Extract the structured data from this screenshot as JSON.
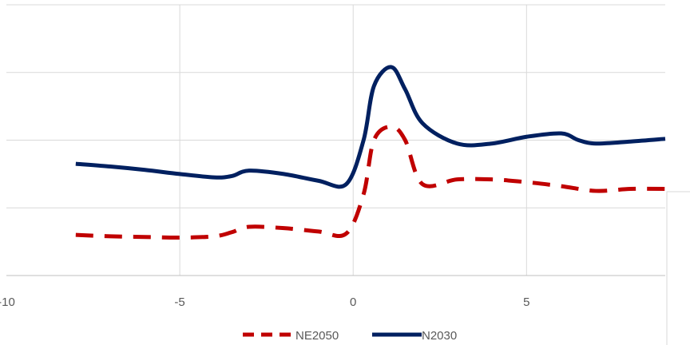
{
  "chart_data": {
    "type": "line",
    "xlim": [
      -10,
      9
    ],
    "ylim": [
      0,
      4
    ],
    "x_ticks": [
      -10,
      -5,
      0,
      5
    ],
    "x_tick_labels": [
      "-10",
      "-5",
      "0",
      "5"
    ],
    "grid": true,
    "legend_position": "bottom",
    "series": [
      {
        "name": "NE2050",
        "color": "#c00000",
        "style": "dashed",
        "x": [
          -8,
          -7,
          -6,
          -5,
          -4,
          -3.5,
          -3,
          -2,
          -1,
          -0.2,
          0.3,
          0.6,
          1.1,
          1.5,
          2,
          3,
          4,
          5,
          6,
          7,
          8,
          9
        ],
        "y": [
          0.6,
          0.58,
          0.57,
          0.56,
          0.58,
          0.64,
          0.72,
          0.7,
          0.65,
          0.62,
          1.2,
          2.0,
          2.2,
          2.0,
          1.35,
          1.42,
          1.42,
          1.38,
          1.32,
          1.25,
          1.28,
          1.28
        ]
      },
      {
        "name": "N2030",
        "color": "#002060",
        "style": "solid",
        "x": [
          -8,
          -7,
          -6,
          -5,
          -4,
          -3.5,
          -3,
          -2,
          -1,
          -0.2,
          0.3,
          0.6,
          1.1,
          1.5,
          2,
          3,
          4,
          5,
          6,
          6.5,
          7,
          8,
          9
        ],
        "y": [
          1.65,
          1.61,
          1.56,
          1.5,
          1.45,
          1.47,
          1.55,
          1.5,
          1.4,
          1.35,
          2.0,
          2.8,
          3.08,
          2.75,
          2.25,
          1.95,
          1.95,
          2.05,
          2.1,
          2.0,
          1.95,
          1.98,
          2.02
        ]
      }
    ]
  }
}
